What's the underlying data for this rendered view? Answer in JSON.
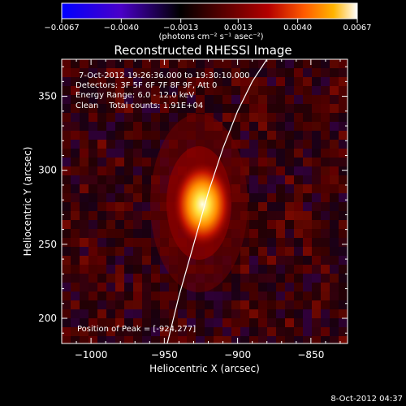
{
  "footer": {
    "date": "8-Oct-2012 04:37"
  },
  "chart_data": {
    "type": "heatmap",
    "title": "Reconstructed RHESSI Image",
    "xlabel": "Heliocentric X (arcsec)",
    "ylabel": "Heliocentric Y (arcsec)",
    "xlim": [
      -1020,
      -825
    ],
    "ylim": [
      183,
      375
    ],
    "x_ticks": [
      -1000,
      -950,
      -900,
      -850
    ],
    "x_tick_labels": [
      "−1000",
      "−950",
      "−900",
      "−850"
    ],
    "y_ticks": [
      200,
      250,
      300,
      350
    ],
    "y_tick_labels": [
      "200",
      "250",
      "300",
      "350"
    ],
    "colorbar": {
      "ticks": [
        -0.0067,
        -0.004,
        -0.0013,
        0.0013,
        0.004,
        0.0067
      ],
      "tick_labels": [
        "−0.0067",
        "−0.0040",
        "−0.0013",
        "0.0013",
        "0.0040",
        "0.0067"
      ],
      "unit_label": "(photons cm⁻² s⁻¹ asec⁻²)",
      "colormap": [
        "#0000ff",
        "#4a00c8",
        "#000000",
        "#5a0000",
        "#b40000",
        "#ff5a00",
        "#ffb400",
        "#ffffff"
      ]
    },
    "annotations": [
      "7-Oct-2012 19:26:36.000 to 19:30:10.000",
      "Detectors: 3F 5F 6F 7F 8F 9F, Att 0",
      "Energy Range: 6.0 - 12.0 keV",
      "Clean    Total counts: 1.91E+04"
    ],
    "peak": {
      "label": "Position of Peak = [-924,277]",
      "x": -924,
      "y": 277
    },
    "limb_curve": {
      "x": [
        -948,
        -940,
        -930,
        -920,
        -910,
        -900,
        -890,
        -880
      ],
      "y": [
        183,
        215,
        250,
        285,
        315,
        340,
        360,
        375
      ]
    }
  }
}
